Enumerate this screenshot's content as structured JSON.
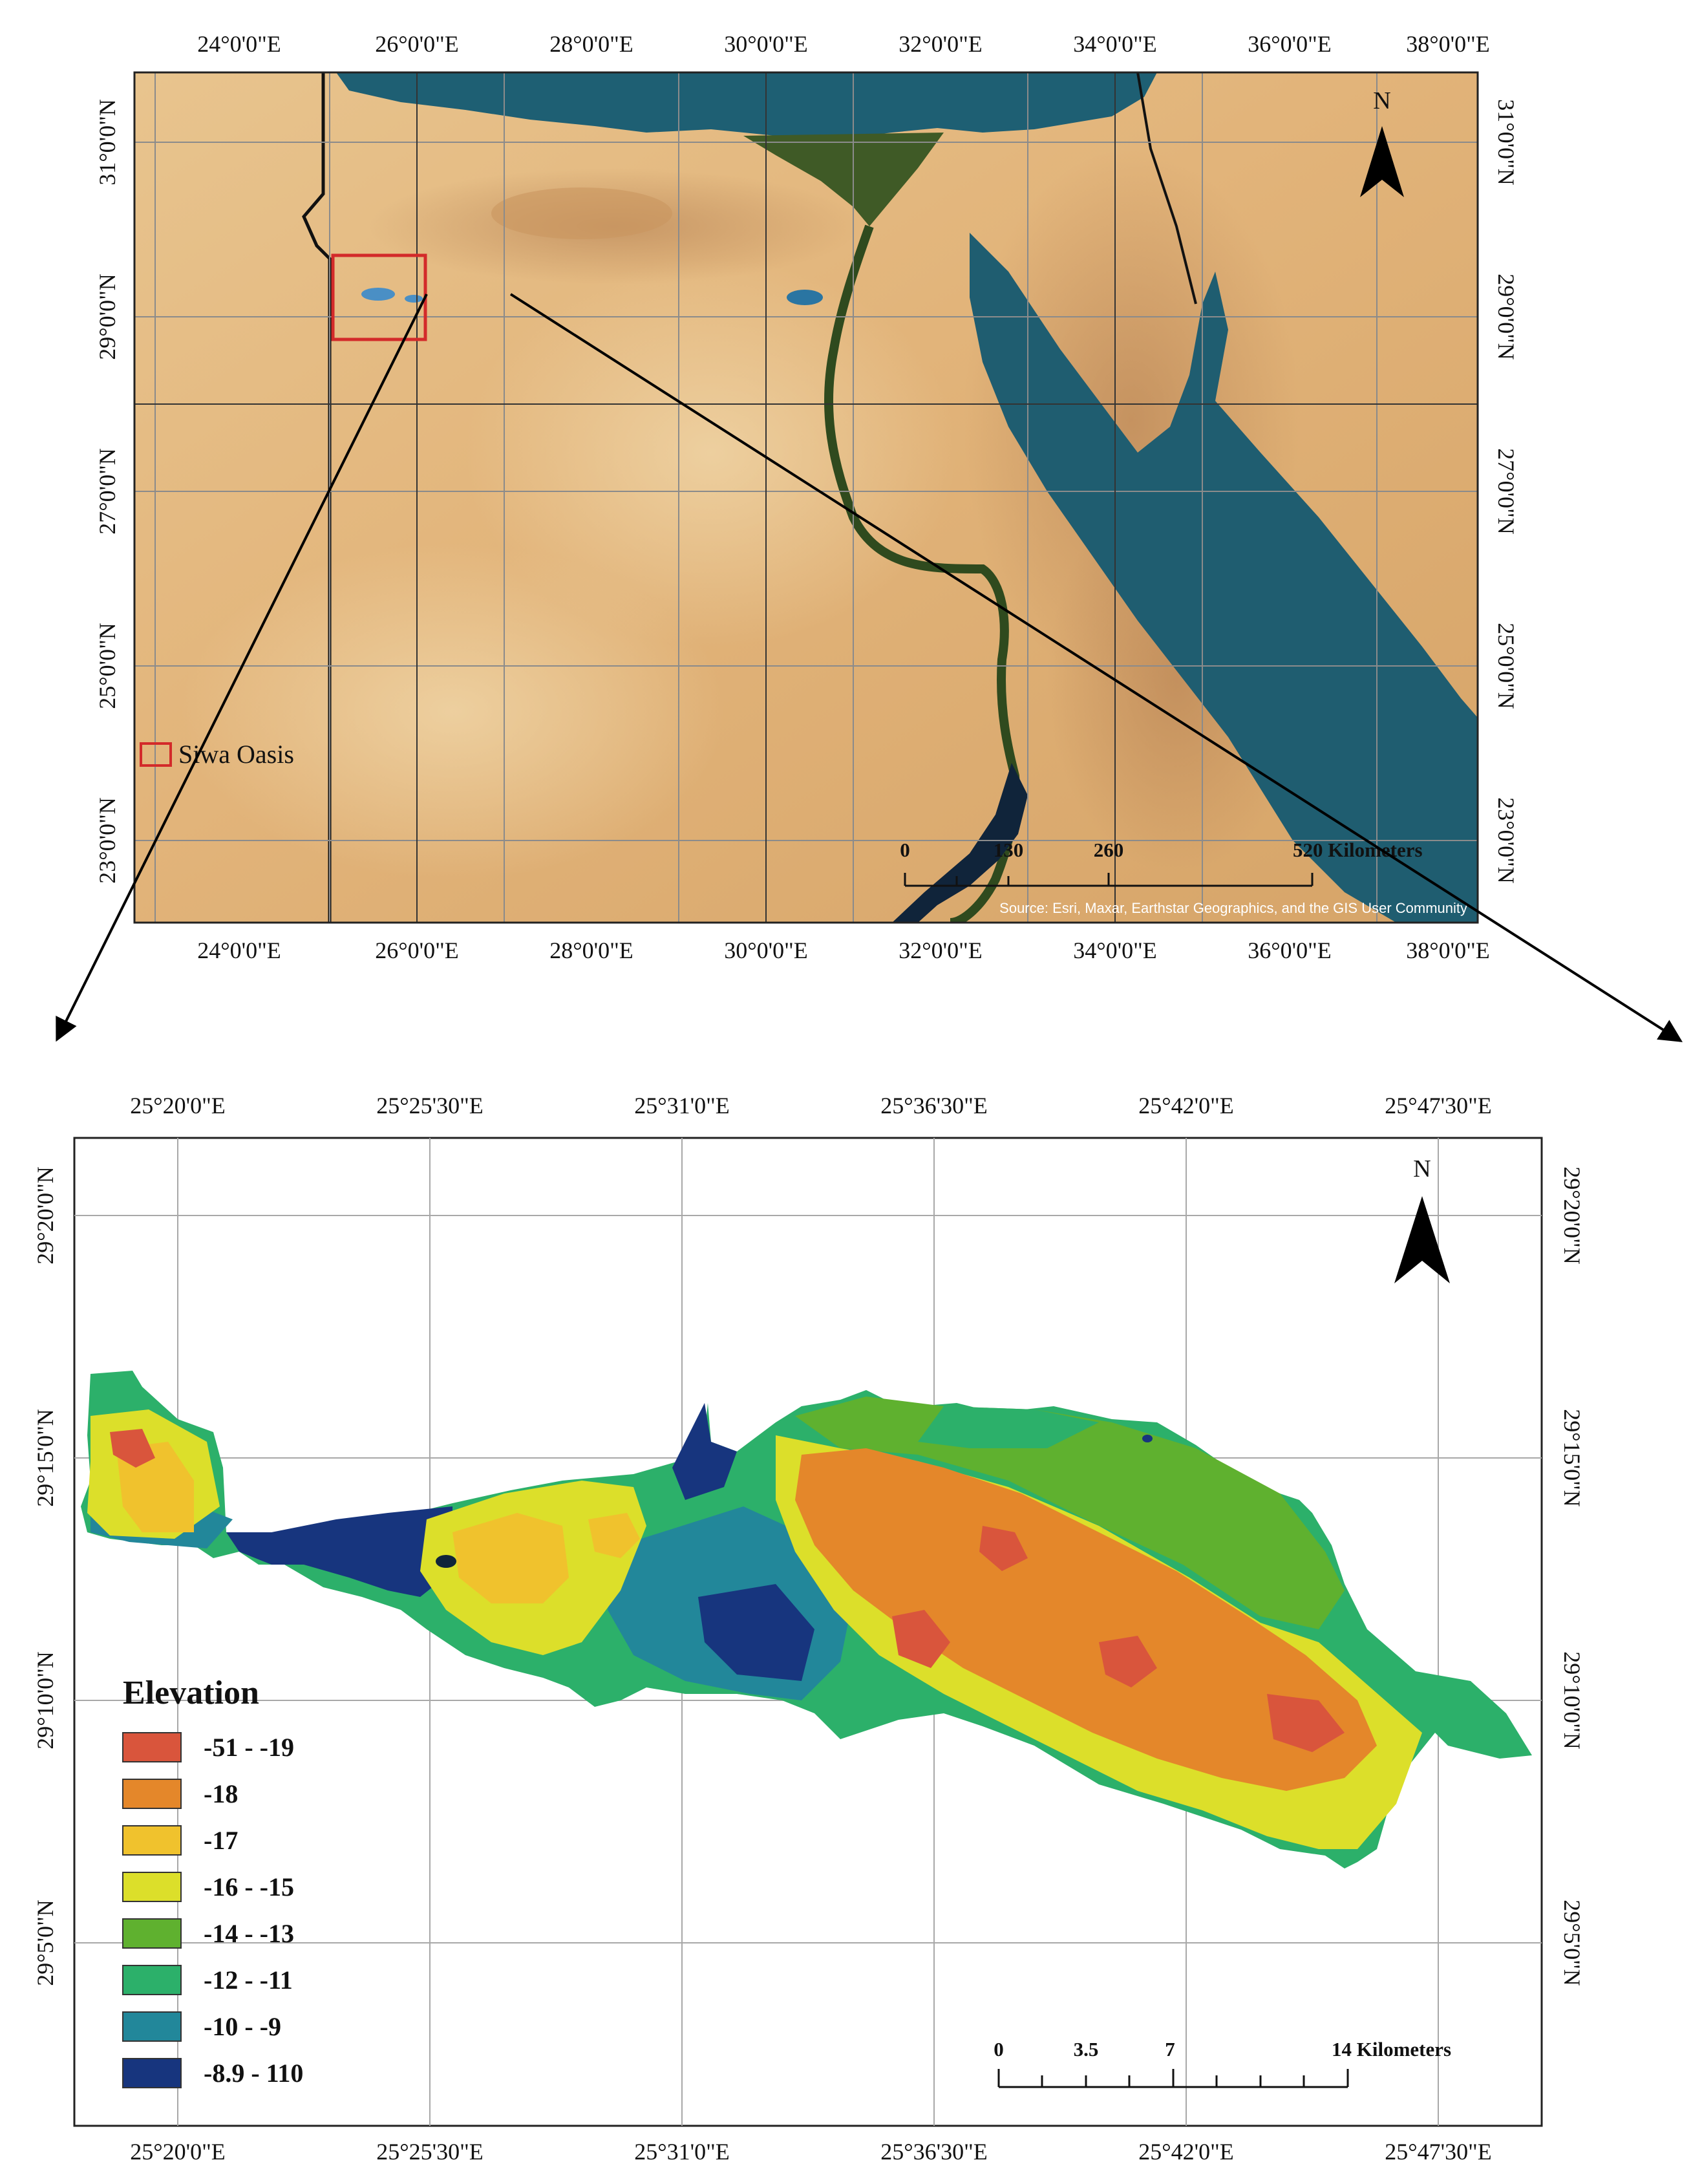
{
  "overview_map": {
    "top_lon_labels": [
      "24°0'0\"E",
      "26°0'0\"E",
      "28°0'0\"E",
      "30°0'0\"E",
      "32°0'0\"E",
      "34°0'0\"E",
      "36°0'0\"E",
      "38°0'0\"E"
    ],
    "bottom_lon_labels": [
      "24°0'0\"E",
      "26°0'0\"E",
      "28°0'0\"E",
      "30°0'0\"E",
      "32°0'0\"E",
      "34°0'0\"E",
      "36°0'0\"E",
      "38°0'0\"E"
    ],
    "lat_labels": [
      "31°0'0\"N",
      "29°0'0\"N",
      "27°0'0\"N",
      "25°0'0\"N",
      "23°0'0\"N"
    ],
    "north_label": "N",
    "legend_label": "Siwa Oasis",
    "scale_labels": [
      "0",
      "130",
      "260",
      "520 Kilometers"
    ],
    "source_text": "Source: Esri, Maxar, Earthstar Geographics, and the GIS User Community",
    "colors": {
      "desert": "#e3b87e",
      "sea": "#1e5f73",
      "nile": "#3f5a26",
      "highlight": "#d32a2a"
    }
  },
  "detail_map": {
    "top_lon_labels": [
      "25°20'0\"E",
      "25°25'30\"E",
      "25°31'0\"E",
      "25°36'30\"E",
      "25°42'0\"E",
      "25°47'30\"E"
    ],
    "bottom_lon_labels": [
      "25°20'0\"E",
      "25°25'30\"E",
      "25°31'0\"E",
      "25°36'30\"E",
      "25°42'0\"E",
      "25°47'30\"E"
    ],
    "lat_labels": [
      "29°20'0\"N",
      "29°15'0\"N",
      "29°10'0\"N",
      "29°5'0\"N"
    ],
    "north_label": "N",
    "scale_labels": [
      "0",
      "3.5",
      "7",
      "14 Kilometers"
    ],
    "legend": {
      "title": "Elevation",
      "classes": [
        {
          "label": "-51 - -19",
          "color": "#d9553c"
        },
        {
          "label": "-18",
          "color": "#e4872a"
        },
        {
          "label": "-17",
          "color": "#f0c22d"
        },
        {
          "label": "-16 - -15",
          "color": "#dcdf2a"
        },
        {
          "label": "-14 - -13",
          "color": "#5fb12f"
        },
        {
          "label": "-12 - -11",
          "color": "#2cb06a"
        },
        {
          "label": "-10 - -9",
          "color": "#22879a"
        },
        {
          "label": "-8.9 - 110",
          "color": "#17357e"
        }
      ]
    }
  }
}
